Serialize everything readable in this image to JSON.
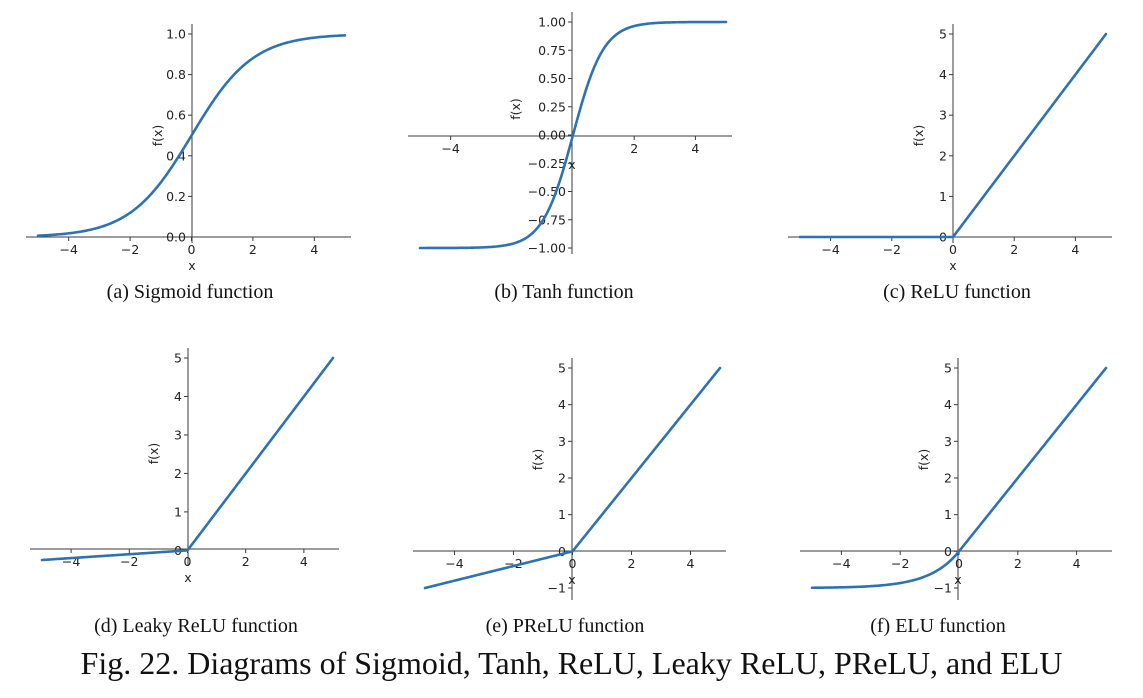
{
  "figure_caption": "Fig. 22.  Diagrams of Sigmoid, Tanh, ReLU, Leaky ReLU, PReLU, and ELU",
  "line_color": "#2f72b1",
  "chart_data": [
    {
      "id": "sigmoid",
      "type": "line",
      "caption": "(a) Sigmoid function",
      "xlabel": "x",
      "ylabel": "f(x)",
      "xlim": [
        -5,
        5
      ],
      "ylim": [
        0,
        1
      ],
      "xticks": [
        -4,
        -2,
        0,
        2,
        4
      ],
      "yticks": [
        0.0,
        0.2,
        0.4,
        0.6,
        0.8,
        1.0
      ],
      "ytick_labels": [
        "0.0",
        "0.2",
        "0.4",
        "0.6",
        "0.8",
        "1.0"
      ],
      "function": "sigmoid",
      "x": [
        -5,
        -4,
        -3,
        -2,
        -1,
        0,
        1,
        2,
        3,
        4,
        5
      ],
      "y": [
        0.007,
        0.018,
        0.047,
        0.119,
        0.269,
        0.5,
        0.731,
        0.881,
        0.953,
        0.982,
        0.993
      ]
    },
    {
      "id": "tanh",
      "type": "line",
      "caption": "(b) Tanh function",
      "xlabel": "x",
      "ylabel": "f(x)",
      "xlim": [
        -5,
        5
      ],
      "ylim": [
        -1,
        1
      ],
      "xticks": [
        -4,
        2,
        4
      ],
      "yticks": [
        -1.0,
        -0.75,
        -0.5,
        -0.25,
        0.0,
        0.25,
        0.5,
        0.75,
        1.0
      ],
      "ytick_labels": [
        "−1.00",
        "−0.75",
        "−0.50",
        "−0.25",
        "0.00",
        "0.25",
        "0.50",
        "0.75",
        "1.00"
      ],
      "function": "tanh",
      "x": [
        -5,
        -4,
        -3,
        -2,
        -1,
        0,
        1,
        2,
        3,
        4,
        5
      ],
      "y": [
        -1.0,
        -0.999,
        -0.995,
        -0.964,
        -0.762,
        0.0,
        0.762,
        0.964,
        0.995,
        0.999,
        1.0
      ]
    },
    {
      "id": "relu",
      "type": "line",
      "caption": "(c) ReLU function",
      "xlabel": "x",
      "ylabel": "f(x)",
      "xlim": [
        -5,
        5
      ],
      "ylim": [
        0,
        5
      ],
      "xticks": [
        -4,
        -2,
        0,
        2,
        4
      ],
      "yticks": [
        0,
        1,
        2,
        3,
        4,
        5
      ],
      "ytick_labels": [
        "0",
        "1",
        "2",
        "3",
        "4",
        "5"
      ],
      "function": "relu",
      "x": [
        -5,
        0,
        5
      ],
      "y": [
        0,
        0,
        5
      ]
    },
    {
      "id": "leaky-relu",
      "type": "line",
      "caption": "(d) Leaky ReLU function",
      "xlabel": "x",
      "ylabel": "f(x)",
      "xlim": [
        -5,
        5
      ],
      "ylim": [
        -0.25,
        5
      ],
      "xticks": [
        -4,
        -2,
        0,
        2,
        4
      ],
      "yticks": [
        0,
        1,
        2,
        3,
        4,
        5
      ],
      "ytick_labels": [
        "0",
        "1",
        "2",
        "3",
        "4",
        "5"
      ],
      "function": "leaky_relu",
      "x": [
        -5,
        0,
        5
      ],
      "y": [
        -0.25,
        0,
        5
      ]
    },
    {
      "id": "prelu",
      "type": "line",
      "caption": "(e) PReLU function",
      "xlabel": "x",
      "ylabel": "f(x)",
      "xlim": [
        -5,
        5
      ],
      "ylim": [
        -1,
        5
      ],
      "xticks": [
        -4,
        -2,
        0,
        2,
        4
      ],
      "yticks": [
        -1,
        0,
        1,
        2,
        3,
        4,
        5
      ],
      "ytick_labels": [
        "−1",
        "0",
        "1",
        "2",
        "3",
        "4",
        "5"
      ],
      "function": "prelu",
      "x": [
        -5,
        0,
        5
      ],
      "y": [
        -1,
        0,
        5
      ]
    },
    {
      "id": "elu",
      "type": "line",
      "caption": "(f) ELU function",
      "xlabel": "x",
      "ylabel": "f(x)",
      "xlim": [
        -5,
        5
      ],
      "ylim": [
        -1,
        5
      ],
      "xticks": [
        -4,
        -2,
        0,
        2,
        4
      ],
      "yticks": [
        -1,
        0,
        1,
        2,
        3,
        4,
        5
      ],
      "ytick_labels": [
        "−1",
        "0",
        "1",
        "2",
        "3",
        "4",
        "5"
      ],
      "function": "elu",
      "x": [
        -5,
        -4,
        -3,
        -2,
        -1,
        0,
        1,
        2,
        3,
        4,
        5
      ],
      "y": [
        -0.993,
        -0.982,
        -0.95,
        -0.865,
        -0.632,
        0,
        1,
        2,
        3,
        4,
        5
      ]
    }
  ]
}
